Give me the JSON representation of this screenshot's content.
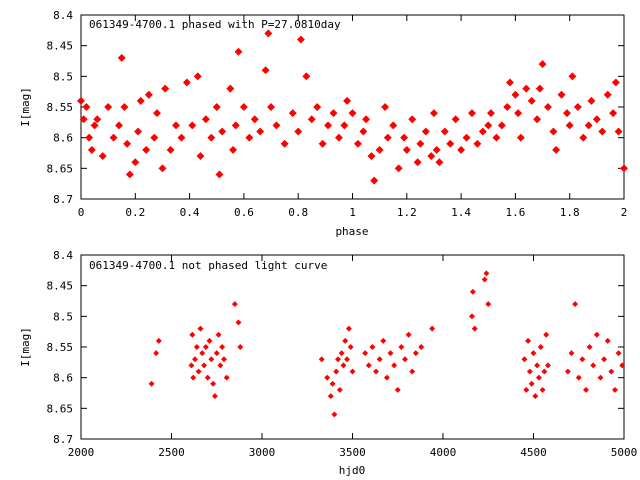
{
  "chart_data": [
    {
      "type": "scatter",
      "title": "061349-4700.1 phased with P=27.0810day",
      "xlabel": "phase",
      "ylabel": "I[mag]",
      "xlim": [
        0,
        2
      ],
      "ylim": [
        8.7,
        8.4
      ],
      "y_inverted": true,
      "grid": false,
      "x_ticks": [
        "0",
        "0.2",
        "0.4",
        "0.6",
        "0.8",
        "1",
        "1.2",
        "1.4",
        "1.6",
        "1.8",
        "2"
      ],
      "y_ticks": [
        "8.4",
        "8.45",
        "8.5",
        "8.55",
        "8.6",
        "8.65",
        "8.7"
      ],
      "series": [
        {
          "color": "#ff0000",
          "marker": "filled-diamond",
          "points": [
            [
              0.0,
              8.54
            ],
            [
              0.01,
              8.57
            ],
            [
              0.02,
              8.55
            ],
            [
              0.03,
              8.6
            ],
            [
              0.04,
              8.62
            ],
            [
              0.05,
              8.58
            ],
            [
              0.06,
              8.57
            ],
            [
              0.08,
              8.63
            ],
            [
              0.1,
              8.55
            ],
            [
              0.12,
              8.6
            ],
            [
              0.14,
              8.58
            ],
            [
              0.15,
              8.47
            ],
            [
              0.16,
              8.55
            ],
            [
              0.17,
              8.61
            ],
            [
              0.18,
              8.66
            ],
            [
              0.2,
              8.64
            ],
            [
              0.21,
              8.59
            ],
            [
              0.22,
              8.54
            ],
            [
              0.24,
              8.62
            ],
            [
              0.25,
              8.53
            ],
            [
              0.27,
              8.6
            ],
            [
              0.28,
              8.56
            ],
            [
              0.3,
              8.65
            ],
            [
              0.31,
              8.52
            ],
            [
              0.33,
              8.62
            ],
            [
              0.35,
              8.58
            ],
            [
              0.37,
              8.6
            ],
            [
              0.39,
              8.51
            ],
            [
              0.41,
              8.58
            ],
            [
              0.43,
              8.5
            ],
            [
              0.44,
              8.63
            ],
            [
              0.46,
              8.57
            ],
            [
              0.48,
              8.6
            ],
            [
              0.5,
              8.55
            ],
            [
              0.51,
              8.66
            ],
            [
              0.52,
              8.59
            ],
            [
              0.55,
              8.52
            ],
            [
              0.56,
              8.62
            ],
            [
              0.57,
              8.58
            ],
            [
              0.58,
              8.46
            ],
            [
              0.6,
              8.55
            ],
            [
              0.62,
              8.6
            ],
            [
              0.64,
              8.57
            ],
            [
              0.66,
              8.59
            ],
            [
              0.68,
              8.49
            ],
            [
              0.69,
              8.43
            ],
            [
              0.7,
              8.55
            ],
            [
              0.72,
              8.58
            ],
            [
              0.75,
              8.61
            ],
            [
              0.78,
              8.56
            ],
            [
              0.8,
              8.59
            ],
            [
              0.81,
              8.44
            ],
            [
              0.83,
              8.5
            ],
            [
              0.85,
              8.57
            ],
            [
              0.87,
              8.55
            ],
            [
              0.89,
              8.61
            ],
            [
              0.91,
              8.58
            ],
            [
              0.93,
              8.56
            ],
            [
              0.95,
              8.6
            ],
            [
              0.97,
              8.58
            ],
            [
              0.98,
              8.54
            ],
            [
              1.0,
              8.56
            ],
            [
              1.02,
              8.61
            ],
            [
              1.04,
              8.59
            ],
            [
              1.05,
              8.57
            ],
            [
              1.07,
              8.63
            ],
            [
              1.08,
              8.67
            ],
            [
              1.1,
              8.62
            ],
            [
              1.12,
              8.55
            ],
            [
              1.13,
              8.6
            ],
            [
              1.15,
              8.58
            ],
            [
              1.17,
              8.65
            ],
            [
              1.19,
              8.6
            ],
            [
              1.2,
              8.62
            ],
            [
              1.22,
              8.57
            ],
            [
              1.24,
              8.64
            ],
            [
              1.25,
              8.61
            ],
            [
              1.27,
              8.59
            ],
            [
              1.29,
              8.63
            ],
            [
              1.3,
              8.56
            ],
            [
              1.31,
              8.62
            ],
            [
              1.32,
              8.64
            ],
            [
              1.34,
              8.59
            ],
            [
              1.36,
              8.61
            ],
            [
              1.38,
              8.57
            ],
            [
              1.4,
              8.62
            ],
            [
              1.42,
              8.6
            ],
            [
              1.44,
              8.56
            ],
            [
              1.46,
              8.61
            ],
            [
              1.48,
              8.59
            ],
            [
              1.5,
              8.58
            ],
            [
              1.51,
              8.56
            ],
            [
              1.53,
              8.6
            ],
            [
              1.55,
              8.58
            ],
            [
              1.57,
              8.55
            ],
            [
              1.58,
              8.51
            ],
            [
              1.6,
              8.53
            ],
            [
              1.61,
              8.56
            ],
            [
              1.62,
              8.6
            ],
            [
              1.64,
              8.52
            ],
            [
              1.66,
              8.54
            ],
            [
              1.68,
              8.57
            ],
            [
              1.69,
              8.52
            ],
            [
              1.7,
              8.48
            ],
            [
              1.72,
              8.55
            ],
            [
              1.74,
              8.59
            ],
            [
              1.75,
              8.62
            ],
            [
              1.77,
              8.53
            ],
            [
              1.79,
              8.56
            ],
            [
              1.8,
              8.58
            ],
            [
              1.81,
              8.5
            ],
            [
              1.83,
              8.55
            ],
            [
              1.85,
              8.6
            ],
            [
              1.87,
              8.58
            ],
            [
              1.88,
              8.54
            ],
            [
              1.9,
              8.57
            ],
            [
              1.92,
              8.59
            ],
            [
              1.94,
              8.53
            ],
            [
              1.96,
              8.56
            ],
            [
              1.97,
              8.51
            ],
            [
              1.98,
              8.59
            ],
            [
              2.0,
              8.65
            ]
          ]
        }
      ]
    },
    {
      "type": "scatter",
      "title": "061349-4700.1 not phased light curve",
      "xlabel": "hjd0",
      "ylabel": "I[mag]",
      "xlim": [
        2000,
        5000
      ],
      "ylim": [
        8.7,
        8.4
      ],
      "y_inverted": true,
      "grid": false,
      "x_ticks": [
        "2000",
        "2500",
        "3000",
        "3500",
        "4000",
        "4500",
        "5000"
      ],
      "y_ticks": [
        "8.4",
        "8.45",
        "8.5",
        "8.55",
        "8.6",
        "8.65",
        "8.7"
      ],
      "series": [
        {
          "color": "#ff0000",
          "marker": "small-filled-diamond",
          "points": [
            [
              2390,
              8.61
            ],
            [
              2415,
              8.56
            ],
            [
              2430,
              8.54
            ],
            [
              2610,
              8.58
            ],
            [
              2615,
              8.53
            ],
            [
              2620,
              8.6
            ],
            [
              2630,
              8.57
            ],
            [
              2640,
              8.55
            ],
            [
              2650,
              8.59
            ],
            [
              2660,
              8.52
            ],
            [
              2670,
              8.56
            ],
            [
              2680,
              8.58
            ],
            [
              2690,
              8.55
            ],
            [
              2700,
              8.6
            ],
            [
              2710,
              8.54
            ],
            [
              2720,
              8.57
            ],
            [
              2730,
              8.61
            ],
            [
              2740,
              8.63
            ],
            [
              2750,
              8.56
            ],
            [
              2760,
              8.53
            ],
            [
              2770,
              8.58
            ],
            [
              2780,
              8.55
            ],
            [
              2790,
              8.57
            ],
            [
              2805,
              8.6
            ],
            [
              2850,
              8.48
            ],
            [
              2870,
              8.51
            ],
            [
              2880,
              8.55
            ],
            [
              3330,
              8.57
            ],
            [
              3360,
              8.6
            ],
            [
              3380,
              8.63
            ],
            [
              3390,
              8.61
            ],
            [
              3400,
              8.66
            ],
            [
              3410,
              8.59
            ],
            [
              3420,
              8.57
            ],
            [
              3430,
              8.62
            ],
            [
              3440,
              8.56
            ],
            [
              3450,
              8.58
            ],
            [
              3460,
              8.54
            ],
            [
              3470,
              8.57
            ],
            [
              3480,
              8.52
            ],
            [
              3490,
              8.55
            ],
            [
              3500,
              8.59
            ],
            [
              3570,
              8.56
            ],
            [
              3590,
              8.58
            ],
            [
              3610,
              8.55
            ],
            [
              3630,
              8.59
            ],
            [
              3650,
              8.57
            ],
            [
              3670,
              8.54
            ],
            [
              3690,
              8.6
            ],
            [
              3710,
              8.56
            ],
            [
              3730,
              8.58
            ],
            [
              3750,
              8.62
            ],
            [
              3770,
              8.55
            ],
            [
              3790,
              8.57
            ],
            [
              3810,
              8.53
            ],
            [
              3830,
              8.59
            ],
            [
              3850,
              8.56
            ],
            [
              3880,
              8.55
            ],
            [
              3940,
              8.52
            ],
            [
              4160,
              8.5
            ],
            [
              4165,
              8.46
            ],
            [
              4175,
              8.52
            ],
            [
              4230,
              8.44
            ],
            [
              4240,
              8.43
            ],
            [
              4250,
              8.48
            ],
            [
              4450,
              8.57
            ],
            [
              4460,
              8.62
            ],
            [
              4470,
              8.54
            ],
            [
              4480,
              8.59
            ],
            [
              4490,
              8.61
            ],
            [
              4500,
              8.56
            ],
            [
              4510,
              8.63
            ],
            [
              4520,
              8.58
            ],
            [
              4530,
              8.6
            ],
            [
              4540,
              8.55
            ],
            [
              4550,
              8.62
            ],
            [
              4560,
              8.59
            ],
            [
              4570,
              8.53
            ],
            [
              4580,
              8.58
            ],
            [
              4690,
              8.59
            ],
            [
              4710,
              8.56
            ],
            [
              4730,
              8.48
            ],
            [
              4750,
              8.6
            ],
            [
              4770,
              8.57
            ],
            [
              4790,
              8.62
            ],
            [
              4810,
              8.55
            ],
            [
              4830,
              8.58
            ],
            [
              4850,
              8.53
            ],
            [
              4870,
              8.6
            ],
            [
              4890,
              8.57
            ],
            [
              4910,
              8.54
            ],
            [
              4930,
              8.59
            ],
            [
              4950,
              8.62
            ],
            [
              4970,
              8.56
            ],
            [
              4990,
              8.58
            ]
          ]
        }
      ]
    }
  ]
}
